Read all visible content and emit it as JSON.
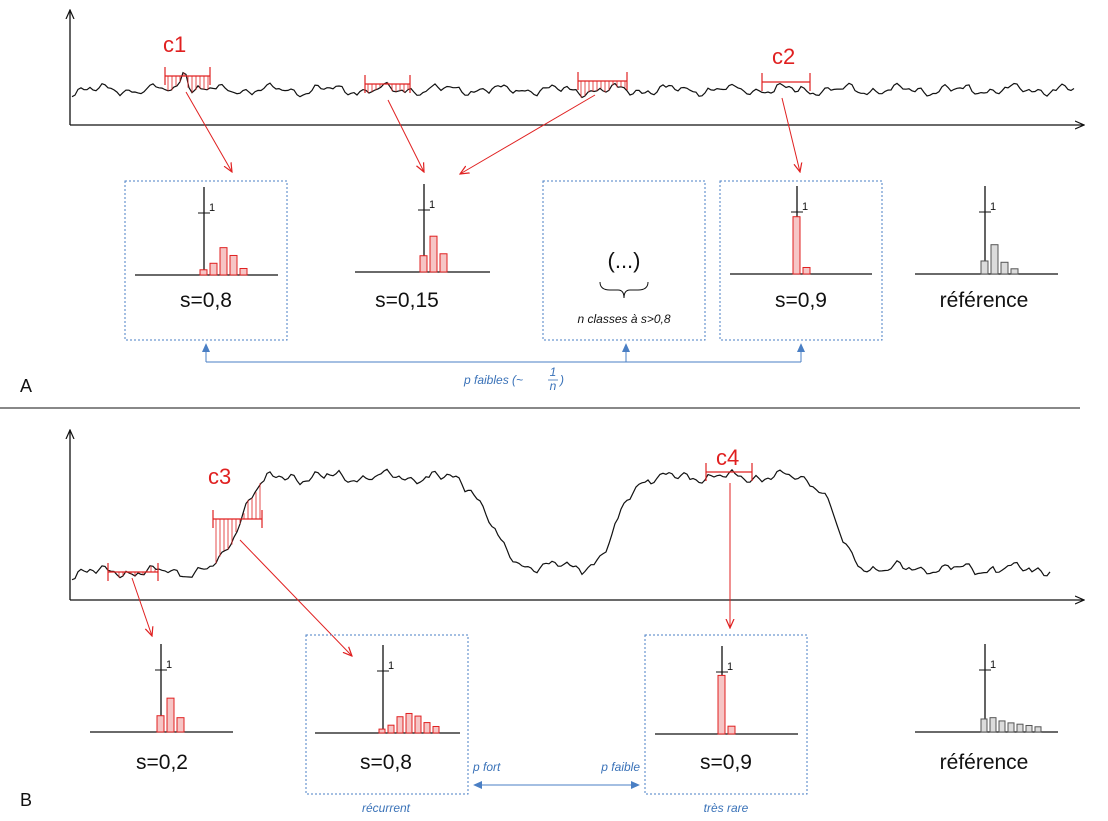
{
  "colors": {
    "signal": "#111111",
    "highlight": "#e02020",
    "bar_fill": "#f6c5c5",
    "reference_fill": "#dcdcdc",
    "box_border": "#4a7fc4",
    "note_text": "#3a72b8"
  },
  "panel_a": {
    "label": "A",
    "windows": [
      {
        "label": "c1"
      },
      {
        "label": ""
      },
      {
        "label": ""
      },
      {
        "label": "c2"
      }
    ],
    "histograms": [
      {
        "score": "s=0,8",
        "tick": "1",
        "bars": [
          0.08,
          0.18,
          0.42,
          0.3,
          0.1
        ],
        "boxed": true
      },
      {
        "score": "s=0,15",
        "tick": "1",
        "bars": [
          0.25,
          0.55,
          0.28
        ],
        "boxed": false
      },
      {
        "score": "s=0,9",
        "tick": "1",
        "bars": [
          0.88,
          0.1
        ],
        "boxed": true
      },
      {
        "score": "référence",
        "tick": "1",
        "bars": [
          0.2,
          0.45,
          0.18,
          0.08
        ],
        "boxed": false,
        "reference": true
      }
    ],
    "ellipsis_box": {
      "text": "(...)",
      "caption": "n classes à s>0,8"
    },
    "probability_note": {
      "text": "p faibles (~",
      "fraction_num": "1",
      "fraction_den": "n",
      "close": ")"
    }
  },
  "panel_b": {
    "label": "B",
    "windows": [
      {
        "label": ""
      },
      {
        "label": "c3"
      },
      {
        "label": "c4"
      }
    ],
    "histograms": [
      {
        "score": "s=0,2",
        "tick": "1",
        "bars": [
          0.25,
          0.52,
          0.22
        ],
        "boxed": false
      },
      {
        "score": "s=0,8",
        "tick": "1",
        "bars": [
          0.06,
          0.12,
          0.25,
          0.3,
          0.26,
          0.16,
          0.1
        ],
        "boxed": true,
        "caption": "récurrent"
      },
      {
        "score": "s=0,9",
        "tick": "1",
        "bars": [
          0.9,
          0.12
        ],
        "boxed": true,
        "caption": "très rare"
      },
      {
        "score": "référence",
        "tick": "1",
        "bars": [
          0.2,
          0.22,
          0.17,
          0.14,
          0.12,
          0.1,
          0.08
        ],
        "boxed": false,
        "reference": true
      }
    ],
    "p_fort": "p fort",
    "p_faible": "p faible"
  }
}
